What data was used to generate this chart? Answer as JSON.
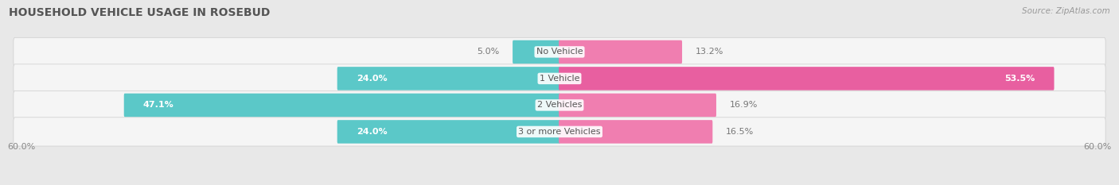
{
  "title": "HOUSEHOLD VEHICLE USAGE IN ROSEBUD",
  "source": "Source: ZipAtlas.com",
  "categories": [
    "No Vehicle",
    "1 Vehicle",
    "2 Vehicles",
    "3 or more Vehicles"
  ],
  "owner_values": [
    5.0,
    24.0,
    47.1,
    24.0
  ],
  "renter_values": [
    13.2,
    53.5,
    16.9,
    16.5
  ],
  "owner_color": "#5BC8C8",
  "renter_color": "#F07EB0",
  "renter_color_large": "#E85FA0",
  "axis_limit": 60.0,
  "axis_label": "60.0%",
  "background_color": "#e8e8e8",
  "row_bg_color": "#f5f5f5",
  "title_fontsize": 10,
  "label_fontsize": 8,
  "category_fontsize": 8,
  "source_fontsize": 7.5,
  "title_color": "#555555",
  "label_color_inside": "#ffffff",
  "label_color_outside": "#777777",
  "category_color": "#555555"
}
